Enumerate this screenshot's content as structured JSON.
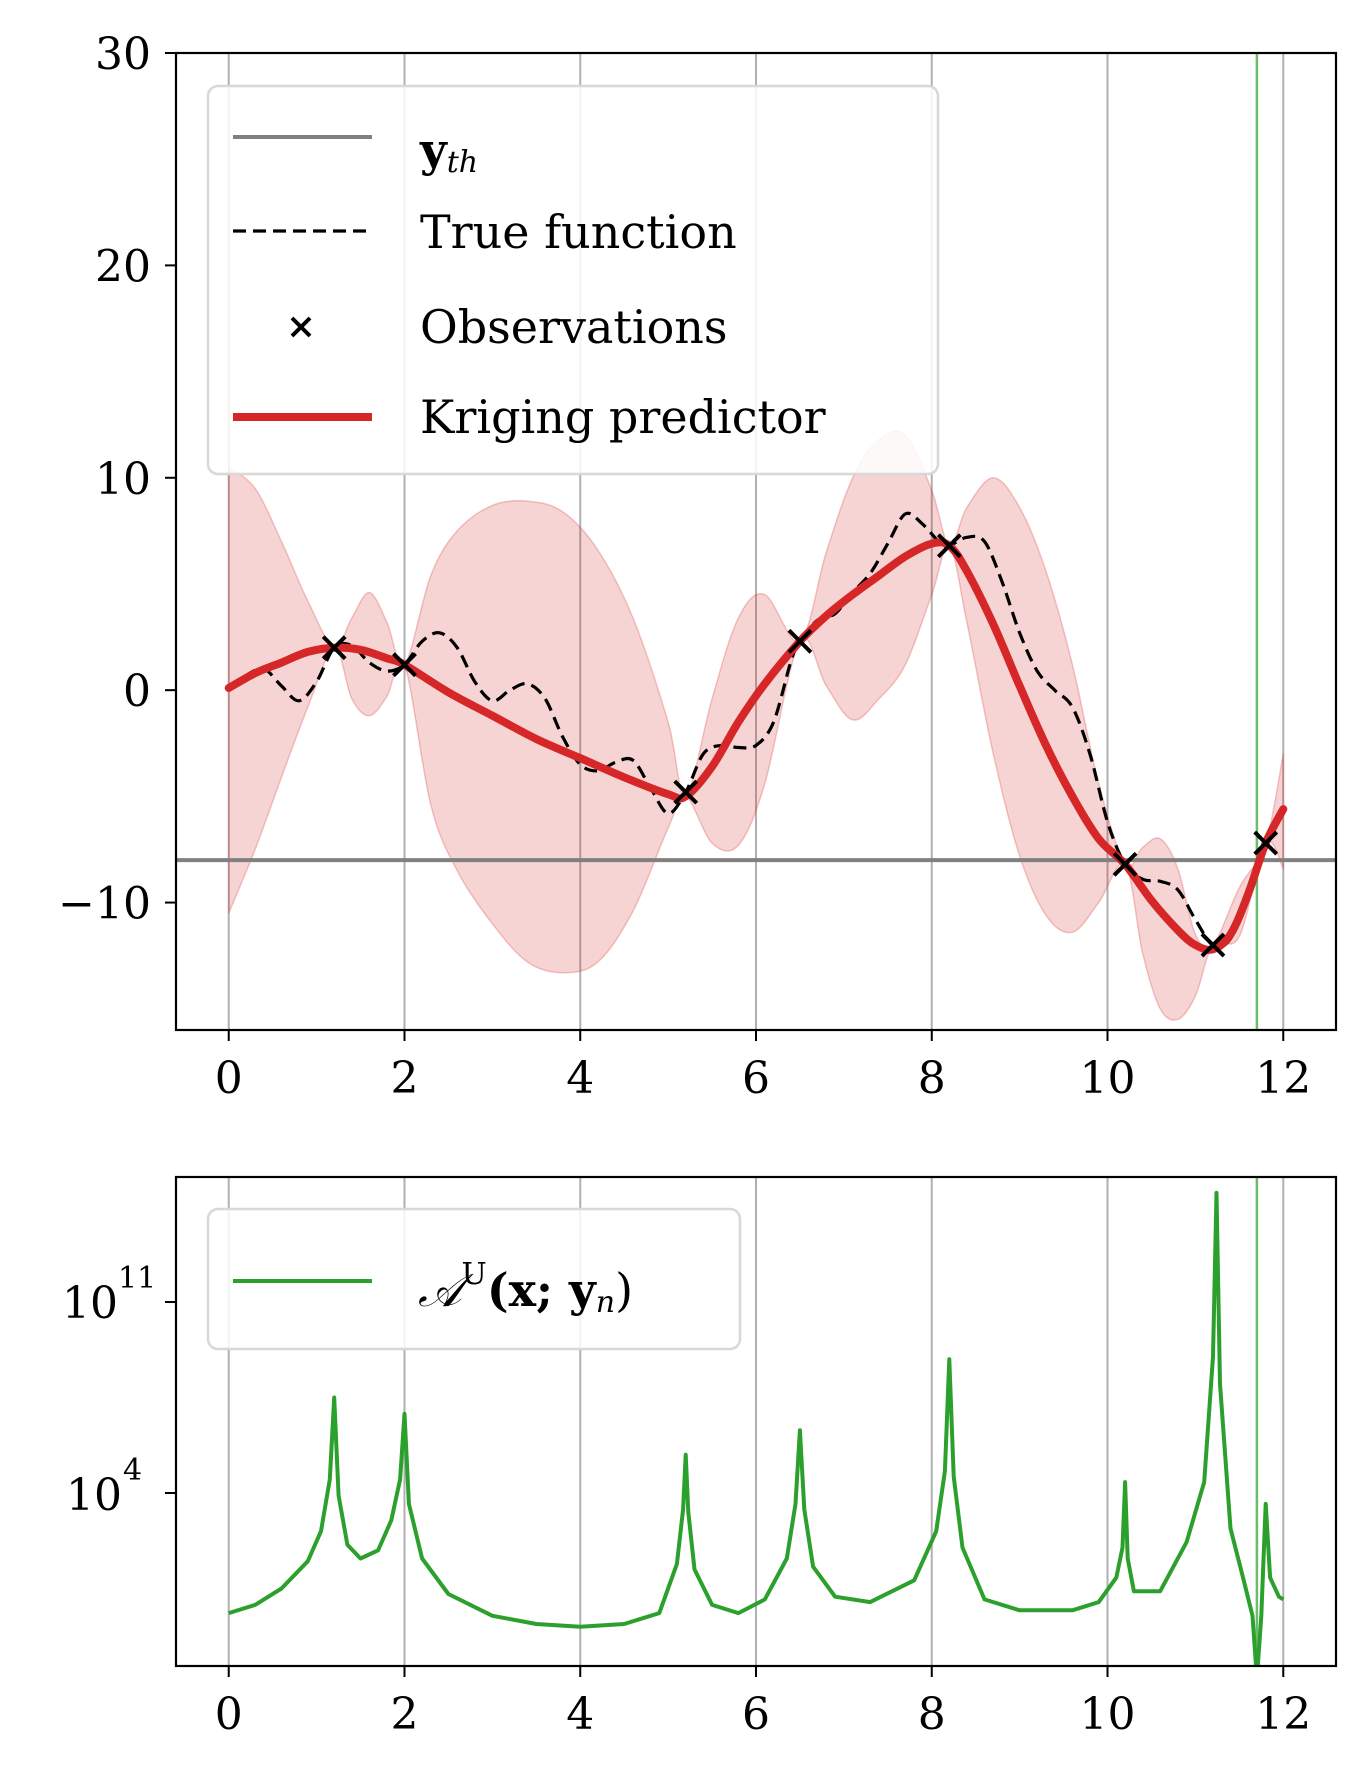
{
  "chart_data": [
    {
      "type": "line",
      "title": "",
      "xlabel": "",
      "ylabel": "",
      "xlim": [
        -0.6,
        12.6
      ],
      "ylim": [
        -16,
        30
      ],
      "xticks": [
        "0",
        "2",
        "4",
        "6",
        "8",
        "10",
        "12"
      ],
      "yticks": [
        "30",
        "20",
        "10",
        "0",
        "−10"
      ],
      "grid": "vertical",
      "legend_position": "top-left",
      "legend": {
        "y_threshold": {
          "base": "y",
          "sub": "th"
        },
        "true_function": "True function",
        "observations": "Observations",
        "kriging": "Kriging predictor"
      },
      "colors": {
        "threshold": "#808080",
        "true_function": "#000000",
        "kriging": "#d62728",
        "band": "#f4cccc",
        "selected": "#2ca02c"
      },
      "threshold_y": -8,
      "selected_x": 11.7,
      "observations": [
        {
          "x": 1.2,
          "y": 2.0
        },
        {
          "x": 2.0,
          "y": 1.2
        },
        {
          "x": 5.2,
          "y": -4.8
        },
        {
          "x": 6.5,
          "y": 2.3
        },
        {
          "x": 8.2,
          "y": 6.8
        },
        {
          "x": 10.2,
          "y": -8.2
        },
        {
          "x": 11.2,
          "y": -12.0
        },
        {
          "x": 11.8,
          "y": -7.2
        }
      ],
      "kriging_mean": {
        "x": [
          0,
          0.3,
          0.6,
          0.9,
          1.2,
          1.5,
          1.8,
          2.0,
          2.5,
          3.0,
          3.5,
          4.0,
          4.5,
          5.0,
          5.2,
          5.5,
          5.8,
          6.1,
          6.5,
          6.8,
          7.1,
          7.4,
          7.7,
          8.0,
          8.2,
          8.4,
          8.7,
          9.0,
          9.3,
          9.6,
          9.9,
          10.2,
          10.5,
          10.8,
          11.0,
          11.2,
          11.4,
          11.6,
          11.8,
          12.0
        ],
        "y": [
          0.1,
          0.8,
          1.3,
          1.8,
          2.0,
          1.9,
          1.5,
          1.2,
          -0.1,
          -1.2,
          -2.3,
          -3.2,
          -4.1,
          -4.9,
          -5.0,
          -3.6,
          -1.5,
          0.3,
          2.3,
          3.5,
          4.5,
          5.4,
          6.3,
          6.9,
          6.8,
          5.6,
          3.1,
          0.2,
          -2.6,
          -5.0,
          -7.0,
          -8.2,
          -9.9,
          -11.3,
          -12.0,
          -12.2,
          -11.5,
          -9.6,
          -7.2,
          -5.6
        ]
      },
      "band_upper": {
        "x": [
          0,
          0.3,
          0.6,
          0.9,
          1.2,
          1.4,
          1.6,
          1.8,
          2.0,
          2.3,
          2.6,
          3.0,
          3.4,
          3.8,
          4.2,
          4.6,
          5.0,
          5.2,
          5.5,
          5.8,
          6.1,
          6.5,
          6.8,
          7.1,
          7.4,
          7.7,
          8.0,
          8.2,
          8.4,
          8.7,
          9.0,
          9.3,
          9.6,
          9.9,
          10.2,
          10.4,
          10.6,
          10.8,
          11.0,
          11.2,
          11.5,
          11.8,
          12.0
        ],
        "y": [
          10.5,
          9.5,
          7.0,
          4.2,
          2.0,
          3.4,
          4.6,
          3.2,
          1.2,
          5.4,
          7.5,
          8.7,
          8.9,
          8.4,
          6.6,
          3.4,
          -1.5,
          -5.0,
          -0.4,
          3.4,
          4.5,
          2.3,
          6.5,
          10.0,
          11.8,
          12.0,
          9.4,
          6.8,
          8.6,
          10.0,
          8.6,
          5.6,
          1.2,
          -4.4,
          -8.2,
          -7.4,
          -7.0,
          -8.4,
          -11.5,
          -12.0,
          -9.3,
          -7.2,
          -3.0
        ]
      },
      "band_lower": {
        "x": [
          0,
          0.3,
          0.6,
          0.9,
          1.2,
          1.4,
          1.6,
          1.8,
          2.0,
          2.3,
          2.6,
          3.0,
          3.4,
          3.8,
          4.2,
          4.6,
          5.0,
          5.2,
          5.5,
          5.8,
          6.1,
          6.5,
          6.8,
          7.1,
          7.4,
          7.7,
          8.0,
          8.2,
          8.4,
          8.7,
          9.0,
          9.3,
          9.6,
          9.9,
          10.2,
          10.4,
          10.6,
          10.8,
          11.0,
          11.2,
          11.5,
          11.8,
          12.0
        ],
        "y": [
          -10.5,
          -7.5,
          -4.1,
          -0.8,
          2.0,
          -0.4,
          -1.2,
          -0.3,
          1.2,
          -5.4,
          -8.5,
          -11.0,
          -12.8,
          -13.3,
          -12.8,
          -10.4,
          -6.5,
          -5.0,
          -7.2,
          -7.3,
          -4.4,
          2.3,
          0.2,
          -1.4,
          -0.4,
          1.2,
          4.5,
          6.8,
          3.2,
          -3.0,
          -7.8,
          -10.6,
          -11.4,
          -10.0,
          -8.2,
          -12.4,
          -15.0,
          -15.5,
          -14.4,
          -12.0,
          -11.6,
          -7.2,
          -8.4
        ]
      },
      "true_function": {
        "x": [
          0,
          0.2,
          0.4,
          0.6,
          0.8,
          1.0,
          1.2,
          1.4,
          1.6,
          1.8,
          2.0,
          2.2,
          2.4,
          2.6,
          2.8,
          3.0,
          3.2,
          3.4,
          3.6,
          3.8,
          4.0,
          4.2,
          4.4,
          4.6,
          4.8,
          5.0,
          5.2,
          5.4,
          5.6,
          5.8,
          6.0,
          6.2,
          6.4,
          6.5,
          6.7,
          6.9,
          7.1,
          7.3,
          7.5,
          7.7,
          7.9,
          8.1,
          8.2,
          8.4,
          8.6,
          8.8,
          9.0,
          9.2,
          9.4,
          9.6,
          9.8,
          10.0,
          10.2,
          10.4,
          10.6,
          10.8,
          11.0,
          11.2,
          11.4,
          11.6,
          11.8
        ],
        "y": [
          0,
          0.7,
          1.0,
          0.2,
          -0.5,
          0.4,
          2.0,
          2.1,
          1.3,
          0.9,
          1.2,
          2.3,
          2.7,
          2.0,
          0.4,
          -0.5,
          0.0,
          0.3,
          -0.4,
          -2.2,
          -3.5,
          -3.8,
          -3.4,
          -3.3,
          -4.6,
          -5.8,
          -4.8,
          -3.0,
          -2.6,
          -2.7,
          -2.6,
          -1.5,
          1.4,
          2.3,
          3.3,
          3.6,
          4.6,
          5.5,
          6.9,
          8.3,
          7.8,
          6.9,
          6.8,
          7.2,
          7.0,
          5.1,
          2.7,
          0.9,
          0.0,
          -0.8,
          -3.0,
          -6.2,
          -8.2,
          -8.9,
          -9.0,
          -9.4,
          -10.8,
          -12.0,
          -11.7,
          -9.5,
          -7.2
        ]
      }
    },
    {
      "type": "line",
      "title": "",
      "xlabel": "",
      "ylabel": "",
      "yscale": "log",
      "xlim": [
        -0.6,
        12.6
      ],
      "xticks": [
        "0",
        "2",
        "4",
        "6",
        "8",
        "10",
        "12"
      ],
      "yticks": [
        {
          "base": "10",
          "exp": "11"
        },
        {
          "base": "10",
          "exp": "4"
        }
      ],
      "grid": "vertical",
      "legend_position": "top-left",
      "legend": {
        "label_base": "𝒜",
        "label_sup": "U",
        "label_args": "(x; y",
        "label_sub": "n",
        "label_close": ")"
      },
      "colors": {
        "acquisition": "#2ca02c"
      },
      "selected_x": 11.7,
      "acquisition_log10": {
        "x": [
          0.0,
          0.3,
          0.6,
          0.9,
          1.05,
          1.15,
          1.2,
          1.25,
          1.35,
          1.5,
          1.7,
          1.85,
          1.95,
          2.0,
          2.05,
          2.2,
          2.5,
          3.0,
          3.5,
          4.0,
          4.5,
          4.9,
          5.1,
          5.17,
          5.2,
          5.23,
          5.3,
          5.5,
          5.8,
          6.1,
          6.35,
          6.45,
          6.5,
          6.55,
          6.65,
          6.9,
          7.3,
          7.8,
          8.05,
          8.15,
          8.2,
          8.25,
          8.35,
          8.6,
          9.0,
          9.6,
          9.9,
          10.1,
          10.17,
          10.2,
          10.23,
          10.3,
          10.6,
          10.9,
          11.1,
          11.2,
          11.24,
          11.28,
          11.4,
          11.55,
          11.65,
          11.7,
          11.75,
          11.8,
          11.85,
          11.95,
          12.0
        ],
        "y": [
          -0.4,
          -0.1,
          0.5,
          1.5,
          2.6,
          4.5,
          7.5,
          3.9,
          2.1,
          1.6,
          1.9,
          3.0,
          4.5,
          6.9,
          3.6,
          1.6,
          0.3,
          -0.5,
          -0.8,
          -0.9,
          -0.8,
          -0.4,
          1.4,
          3.4,
          5.4,
          3.3,
          1.2,
          -0.1,
          -0.4,
          0.1,
          1.6,
          3.6,
          6.3,
          3.4,
          1.3,
          0.2,
          0.0,
          0.8,
          2.6,
          4.8,
          8.9,
          4.6,
          2.0,
          0.1,
          -0.3,
          -0.3,
          0.0,
          0.9,
          2.0,
          4.4,
          1.6,
          0.4,
          0.4,
          2.2,
          4.4,
          9.0,
          15.0,
          8.0,
          2.7,
          0.8,
          -0.5,
          -2.8,
          -0.5,
          3.6,
          0.9,
          0.2,
          0.1
        ]
      }
    }
  ]
}
